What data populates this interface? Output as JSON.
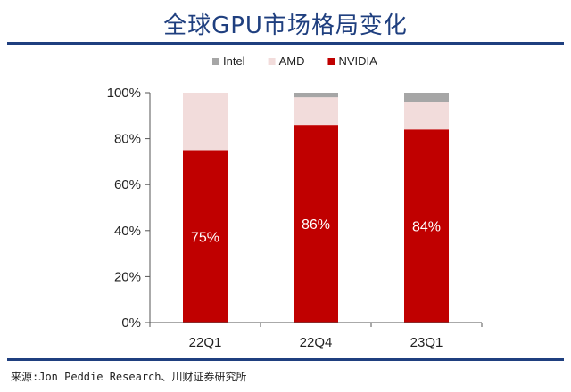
{
  "title": "全球GPU市场格局变化",
  "source": "来源:Jon Peddie Research、川财证券研究所",
  "chart_data": {
    "type": "bar",
    "stacked": true,
    "categories": [
      "22Q1",
      "22Q4",
      "23Q1"
    ],
    "series": [
      {
        "name": "NVIDIA",
        "color": "#c00000",
        "values": [
          75,
          86,
          84
        ],
        "labels": [
          "75%",
          "86%",
          "84%"
        ]
      },
      {
        "name": "AMD",
        "color": "#f2dcdb",
        "values": [
          25,
          12,
          12
        ]
      },
      {
        "name": "Intel",
        "color": "#a6a6a6",
        "values": [
          0,
          2,
          4
        ]
      }
    ],
    "legend_order": [
      "Intel",
      "AMD",
      "NVIDIA"
    ],
    "legend_position": "top",
    "ylim": [
      0,
      100
    ],
    "yticks": [
      0,
      20,
      40,
      60,
      80,
      100
    ],
    "ytick_labels": [
      "0%",
      "20%",
      "40%",
      "60%",
      "80%",
      "100%"
    ],
    "grid": false
  }
}
